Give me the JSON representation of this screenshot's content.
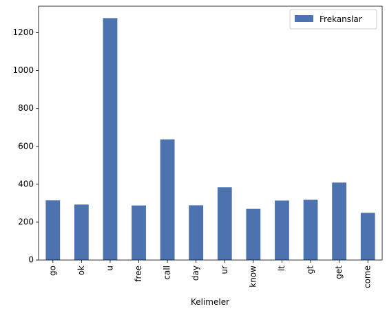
{
  "chart_data": {
    "type": "bar",
    "categories": [
      "go",
      "ok",
      "u",
      "free",
      "call",
      "day",
      "ur",
      "know",
      "lt",
      "gt",
      "get",
      "come"
    ],
    "series": [
      {
        "name": "Frekanslar",
        "values": [
          315,
          293,
          1277,
          288,
          637,
          289,
          384,
          270,
          314,
          318,
          409,
          249
        ],
        "color": "#4c72b0"
      }
    ],
    "xlabel": "Kelimeler",
    "ylabel": "",
    "ylim": [
      0,
      1340
    ],
    "yticks": [
      0,
      200,
      400,
      600,
      800,
      1000,
      1200
    ],
    "grid": false,
    "legend": "top-right"
  }
}
